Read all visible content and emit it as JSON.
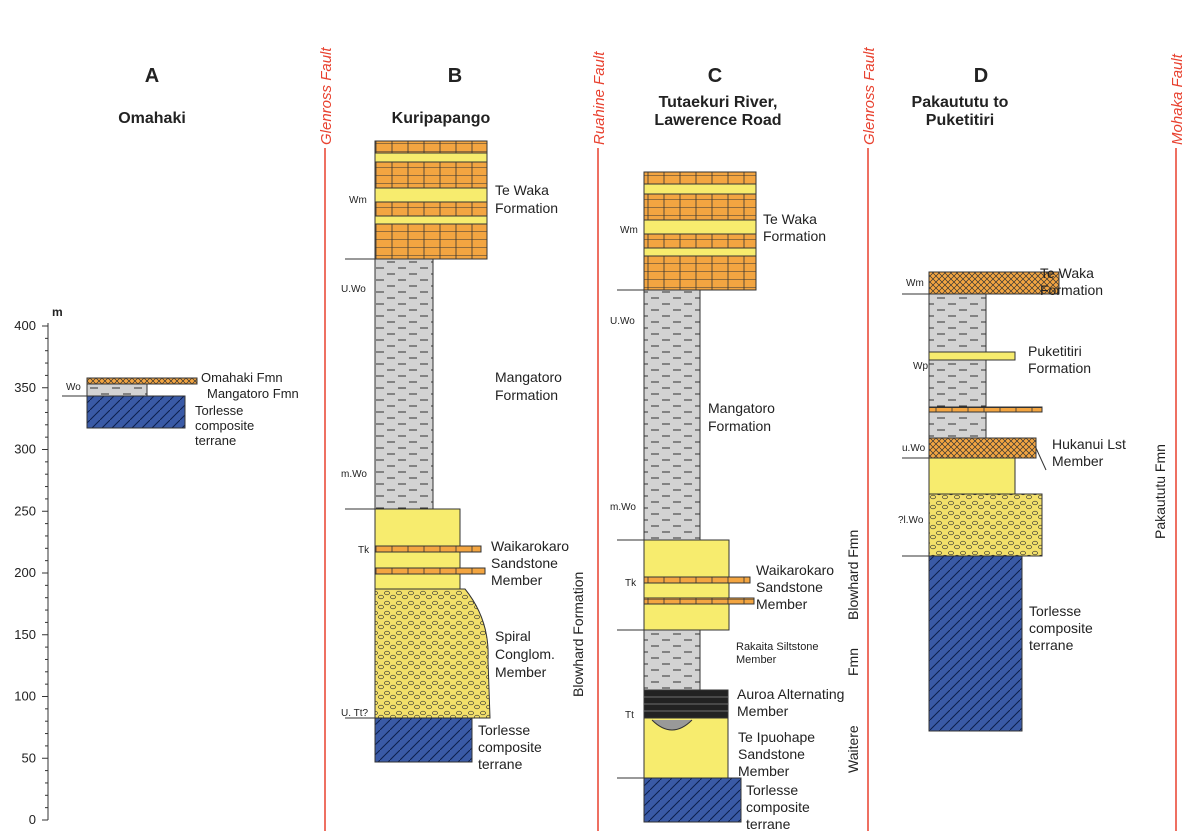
{
  "scale": {
    "unit": "m",
    "ticks": [
      "400",
      "350",
      "300",
      "250",
      "200",
      "150",
      "100",
      "50",
      "0"
    ]
  },
  "columns": {
    "A": {
      "letter": "A",
      "title": [
        "Omahaki"
      ],
      "codes": [
        "Wo"
      ],
      "units": [
        "Omahaki Fmn",
        "Mangatoro Fmn",
        "Torlesse",
        "composite",
        "terrane"
      ]
    },
    "B": {
      "letter": "B",
      "title": [
        "Kuripapango"
      ],
      "codes": [
        "Wm",
        "U.Wo",
        "m.Wo",
        "Tk",
        "U. Tt?"
      ],
      "units": [
        "Te Waka",
        "Formation",
        "Mangatoro",
        "Formation",
        "Waikarokaro",
        "Sandstone",
        "Member",
        "Spiral",
        "Conglom.",
        "Member",
        "Torlesse",
        "composite",
        "terrane"
      ],
      "side_label": "Blowhard Formation"
    },
    "C": {
      "letter": "C",
      "title": [
        "Tutaekuri River,",
        "Lawerence Road"
      ],
      "codes": [
        "Wm",
        "U.Wo",
        "m.Wo",
        "Tk",
        "Tt"
      ],
      "units": [
        "Te Waka",
        "Formation",
        "Mangatoro",
        "Formation",
        "Waikarokaro",
        "Sandstone",
        "Member",
        "Rakaita Siltstone",
        "Member",
        "Auroa Alternating",
        "Member",
        "Te Ipuohape",
        "Sandstone",
        "Member",
        "Torlesse",
        "composite",
        "terrane"
      ],
      "side_labels": [
        "Blowhard Fmn",
        "Fmn",
        "Waitere"
      ]
    },
    "D": {
      "letter": "D",
      "title": [
        "Pakaututu to",
        "Puketitiri"
      ],
      "codes": [
        "Wm",
        "Wp",
        "u.Wo",
        "?l.Wo"
      ],
      "units": [
        "Te Waka",
        "Formation",
        "Puketitiri",
        "Formation",
        "Hukanui Lst",
        "Member",
        "Torlesse",
        "composite",
        "terrane"
      ],
      "side_label": "Pakaututu Fmn"
    }
  },
  "faults": [
    "Glenross Fault",
    "Ruahine Fault",
    "Glenross Fault",
    "Mohaka Fault"
  ],
  "colors": {
    "sandstone": "#f7ec6e",
    "limestone": "#f3a541",
    "mudstone": "#d3d3d3",
    "basement": "#3a5aa6",
    "fault": "#e8412f"
  }
}
